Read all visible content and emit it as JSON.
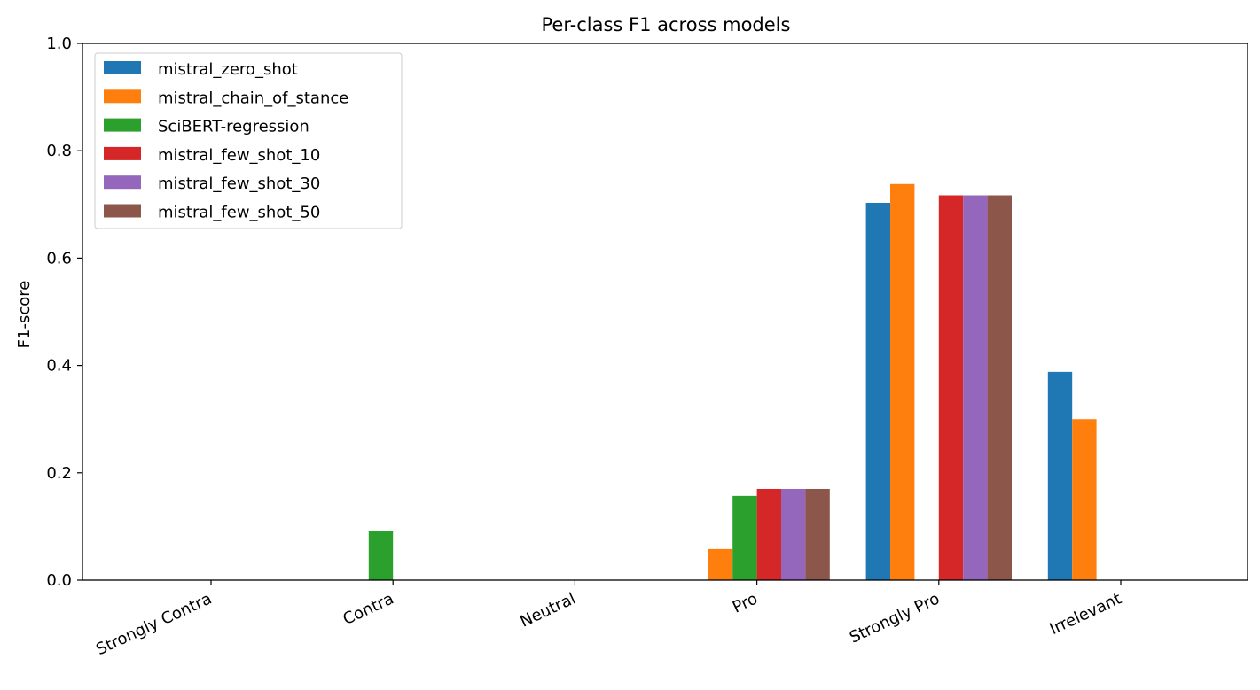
{
  "chart_data": {
    "type": "bar",
    "title": "Per-class F1 across models",
    "xlabel": "",
    "ylabel": "F1-score",
    "ylim": [
      0,
      1.0
    ],
    "yticks": [
      "0.0",
      "0.2",
      "0.4",
      "0.6",
      "0.8",
      "1.0"
    ],
    "grid": false,
    "legend_position": "top-left",
    "categories": [
      "Strongly Contra",
      "Contra",
      "Neutral",
      "Pro",
      "Strongly Pro",
      "Irrelevant"
    ],
    "series": [
      {
        "name": "mistral_zero_shot",
        "color": "#1f77b4",
        "values": [
          0,
          0,
          0,
          0,
          0.703,
          0.388
        ]
      },
      {
        "name": "mistral_chain_of_stance",
        "color": "#ff7f0e",
        "values": [
          0,
          0,
          0,
          0.058,
          0.738,
          0.3
        ]
      },
      {
        "name": "SciBERT-regression",
        "color": "#2ca02c",
        "values": [
          0,
          0.091,
          0,
          0.157,
          0,
          0
        ]
      },
      {
        "name": "mistral_few_shot_10",
        "color": "#d62728",
        "values": [
          0,
          0,
          0,
          0.17,
          0.717,
          0
        ]
      },
      {
        "name": "mistral_few_shot_30",
        "color": "#9467bd",
        "values": [
          0,
          0,
          0,
          0.17,
          0.717,
          0
        ]
      },
      {
        "name": "mistral_few_shot_50",
        "color": "#8c564b",
        "values": [
          0,
          0,
          0,
          0.17,
          0.717,
          0
        ]
      }
    ]
  }
}
